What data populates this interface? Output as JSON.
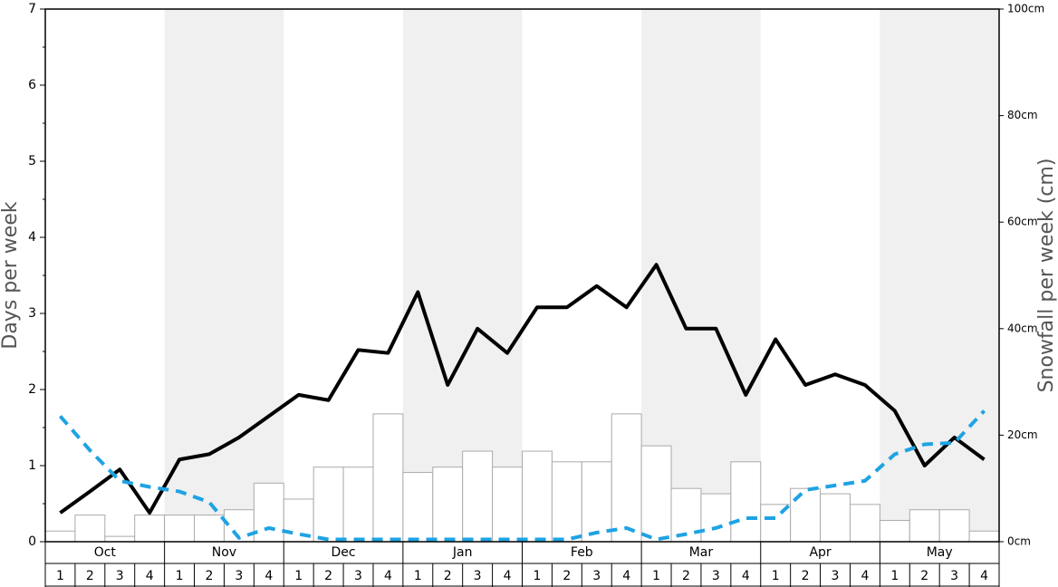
{
  "chart_data": {
    "type": "bar-line",
    "y_label": "Days per week",
    "y2_label": "Snowfall per week (cm)",
    "months": [
      "Oct",
      "Nov",
      "Dec",
      "Jan",
      "Feb",
      "Mar",
      "Apr",
      "May"
    ],
    "shaded_months": [
      false,
      true,
      false,
      true,
      false,
      true,
      false,
      true
    ],
    "shade_color": "#f0f0f0",
    "categories": [
      "1",
      "2",
      "3",
      "4",
      "1",
      "2",
      "3",
      "4",
      "1",
      "2",
      "3",
      "4",
      "1",
      "2",
      "3",
      "4",
      "1",
      "2",
      "3",
      "4",
      "1",
      "2",
      "3",
      "4",
      "1",
      "2",
      "3",
      "4",
      "1",
      "2",
      "3",
      "4"
    ],
    "ylim": [
      0,
      7
    ],
    "yticks": [
      0,
      1,
      2,
      3,
      4,
      5,
      6,
      7
    ],
    "y_minor_ticks": [
      0.5,
      1.5,
      2.5,
      3.5,
      4.5,
      5.5,
      6.5
    ],
    "y2lim": [
      0,
      100
    ],
    "y2ticks": [
      {
        "value": 0,
        "label": "0cm"
      },
      {
        "value": 20,
        "label": "20cm"
      },
      {
        "value": 40,
        "label": "40cm"
      },
      {
        "value": 60,
        "label": "60cm"
      },
      {
        "value": 80,
        "label": "80cm"
      },
      {
        "value": 100,
        "label": "100cm"
      }
    ],
    "series": [
      {
        "kind": "bar",
        "axis": "y2",
        "color": "#ffffff",
        "stroke": "#aaaaaa",
        "values": [
          2,
          5,
          1,
          5,
          5,
          5,
          6,
          11,
          8,
          14,
          14,
          24,
          13,
          14,
          17,
          14,
          17,
          15,
          15,
          24,
          18,
          10,
          9,
          15,
          7,
          10,
          9,
          7,
          4,
          6,
          6,
          2
        ]
      },
      {
        "kind": "line",
        "axis": "y",
        "color": "#000000",
        "dashed": false,
        "values": [
          0.38,
          0.66,
          0.95,
          0.38,
          1.08,
          1.15,
          1.37,
          1.65,
          1.93,
          1.86,
          2.52,
          2.48,
          3.28,
          2.06,
          2.8,
          2.48,
          3.08,
          3.08,
          3.36,
          3.08,
          3.64,
          2.8,
          2.8,
          1.93,
          2.66,
          2.06,
          2.2,
          2.06,
          1.72,
          1.0,
          1.37,
          1.08
        ]
      },
      {
        "kind": "line",
        "axis": "y",
        "color": "#1ea3e3",
        "dashed": true,
        "values": [
          1.65,
          1.2,
          0.8,
          0.72,
          0.66,
          0.52,
          0.05,
          0.18,
          0.1,
          0.03,
          0.03,
          0.03,
          0.03,
          0.03,
          0.03,
          0.03,
          0.03,
          0.03,
          0.12,
          0.18,
          0.03,
          0.1,
          0.18,
          0.31,
          0.31,
          0.68,
          0.74,
          0.8,
          1.15,
          1.28,
          1.3,
          1.72
        ]
      }
    ]
  }
}
